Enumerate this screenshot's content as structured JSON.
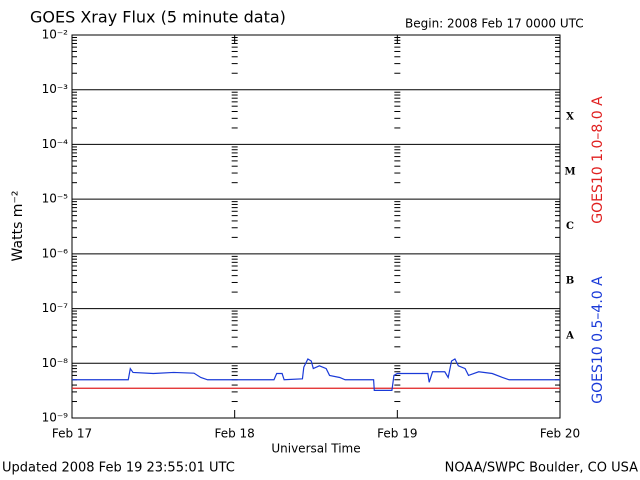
{
  "chart_data": {
    "type": "line",
    "title": "GOES Xray Flux (5 minute data)",
    "subtitle": "Begin:  2008 Feb 17 0000 UTC",
    "y_label": "Watts m⁻²",
    "x_label": "Universal Time",
    "footer_left": "Updated 2008 Feb 19 23:55:01 UTC",
    "footer_right": "NOAA/SWPC Boulder, CO USA",
    "log_y": true,
    "grid": true,
    "xlim": [
      0,
      72
    ],
    "xticks": [
      {
        "value": 0,
        "label": "Feb 17"
      },
      {
        "value": 24,
        "label": "Feb 18"
      },
      {
        "value": 48,
        "label": "Feb 19"
      },
      {
        "value": 72,
        "label": "Feb 20"
      }
    ],
    "ylim": [
      1e-09,
      0.01
    ],
    "yticks": [
      {
        "value": 1e-09,
        "label": "10⁻⁹"
      },
      {
        "value": 1e-08,
        "label": "10⁻⁸"
      },
      {
        "value": 1e-07,
        "label": "10⁻⁷"
      },
      {
        "value": 1e-06,
        "label": "10⁻⁶"
      },
      {
        "value": 1e-05,
        "label": "10⁻⁵"
      },
      {
        "value": 0.0001,
        "label": "10⁻⁴"
      },
      {
        "value": 0.001,
        "label": "10⁻³"
      },
      {
        "value": 0.01,
        "label": "10⁻²"
      }
    ],
    "flare_classes": [
      {
        "label": "A",
        "value": 1e-08
      },
      {
        "label": "B",
        "value": 1e-07
      },
      {
        "label": "C",
        "value": 1e-06
      },
      {
        "label": "M",
        "value": 1e-05
      },
      {
        "label": "X",
        "value": 0.0001
      }
    ],
    "series": [
      {
        "name": "GOES10 1.0–8.0 A",
        "color": "#e02020",
        "x": [
          0,
          72
        ],
        "values": [
          3.5e-09,
          3.5e-09
        ]
      },
      {
        "name": "GOES10 0.5–4.0 A",
        "color": "#1a3ad8",
        "x": [
          0,
          8.3,
          8.6,
          9,
          12,
          15,
          18,
          19,
          20,
          29.8,
          30.2,
          31,
          31.3,
          34,
          34.2,
          34.8,
          35.3,
          35.6,
          36.5,
          37.5,
          38,
          39.5,
          40.3,
          44.5,
          44.6,
          47.2,
          47.5,
          48,
          52.5,
          52.7,
          53.2,
          55,
          55.5,
          56,
          56.5,
          57,
          58,
          58.5,
          60,
          62,
          63.5,
          64.5,
          72
        ],
        "values": [
          5e-09,
          5e-09,
          8e-09,
          6.8e-09,
          6.5e-09,
          6.8e-09,
          6.6e-09,
          5.5e-09,
          5e-09,
          5e-09,
          6.5e-09,
          6.5e-09,
          5e-09,
          5.2e-09,
          8.5e-09,
          1.2e-08,
          1.1e-08,
          8e-09,
          9e-09,
          8e-09,
          6e-09,
          5.5e-09,
          5e-09,
          5e-09,
          3.2e-09,
          3.2e-09,
          6e-09,
          6.5e-09,
          6.5e-09,
          4.5e-09,
          7e-09,
          7e-09,
          5.5e-09,
          1.1e-08,
          1.2e-08,
          9e-09,
          8e-09,
          6e-09,
          7e-09,
          6.5e-09,
          5.5e-09,
          5e-09,
          5e-09
        ]
      }
    ]
  }
}
